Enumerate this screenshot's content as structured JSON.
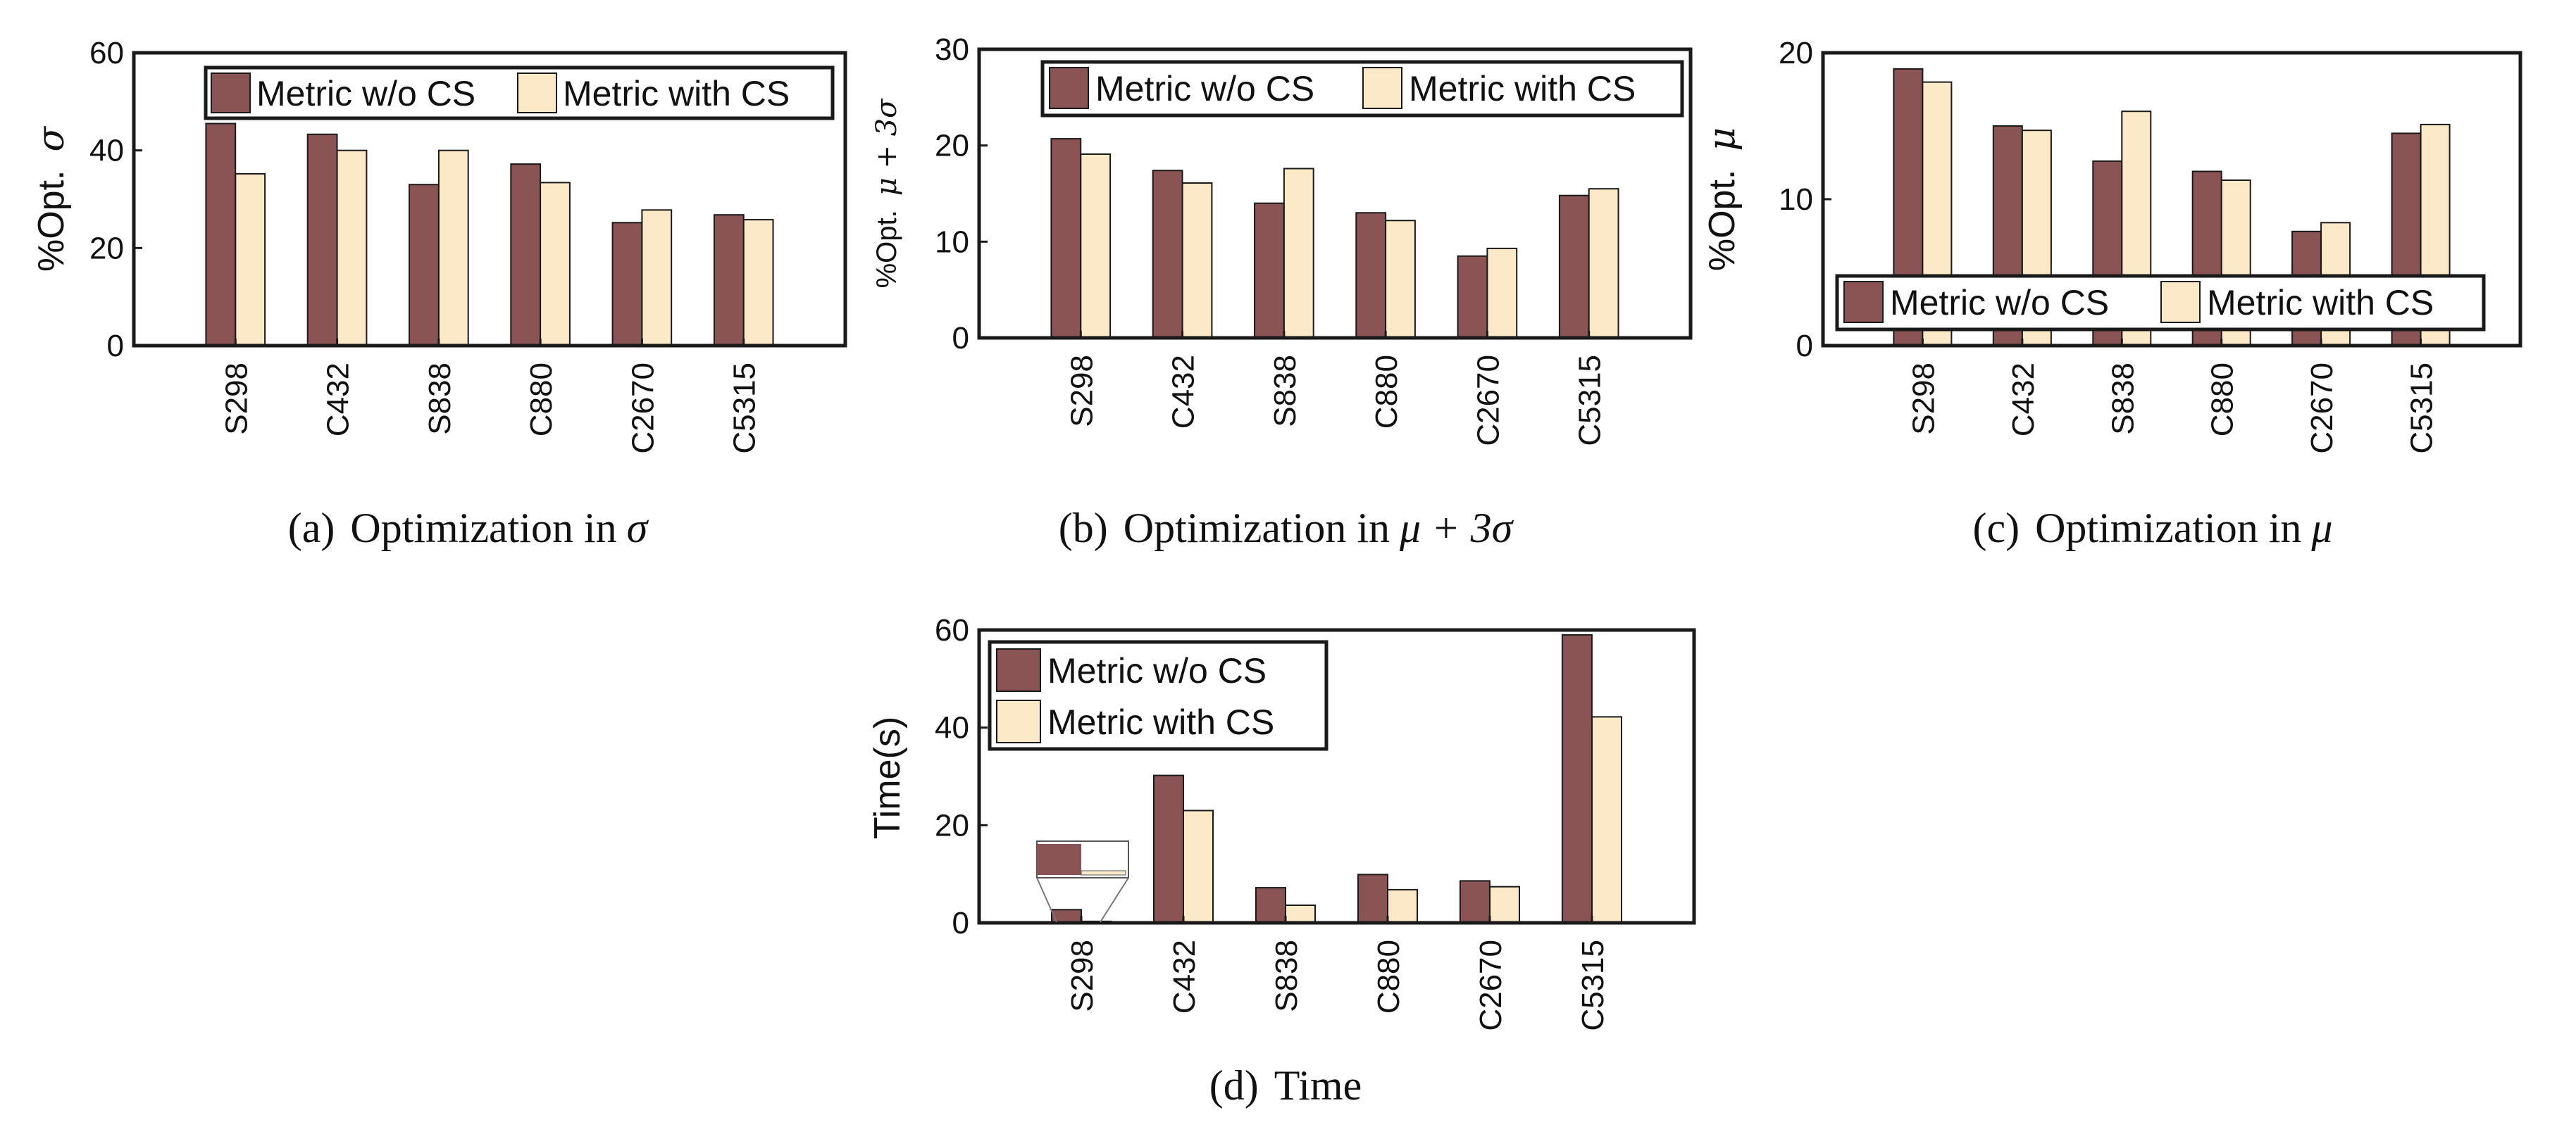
{
  "series_names": [
    "Metric w/o CS",
    "Metric with CS"
  ],
  "colors": {
    "without_cs": "#8a5455",
    "with_cs": "#fbe9c8",
    "axis": "#1a1a1a",
    "edge": "#1a1a1a",
    "background": "#ffffff"
  },
  "chart_data": [
    {
      "id": "a",
      "type": "bar",
      "title": "",
      "categories": [
        "S298",
        "C432",
        "S838",
        "C880",
        "C2670",
        "C5315"
      ],
      "series": [
        {
          "name": "Metric w/o CS",
          "values": [
            45.5,
            43.3,
            33.0,
            37.2,
            25.2,
            26.8
          ]
        },
        {
          "name": "Metric with CS",
          "values": [
            35.2,
            40.0,
            40.0,
            33.4,
            27.8,
            25.8
          ]
        }
      ],
      "ylim": [
        0,
        60
      ],
      "yticks": [
        "0",
        "20",
        "40",
        "60"
      ],
      "ylabel_prefix": "%Opt.",
      "ylabel_symbol": "σ",
      "xlabel": "",
      "legend_location": "top",
      "caption": {
        "tag": "(a)",
        "text": "Optimization in",
        "math": "σ"
      }
    },
    {
      "id": "b",
      "type": "bar",
      "title": "",
      "categories": [
        "S298",
        "C432",
        "S838",
        "C880",
        "C2670",
        "C5315"
      ],
      "series": [
        {
          "name": "Metric w/o CS",
          "values": [
            20.7,
            17.4,
            14.0,
            13.0,
            8.5,
            14.8
          ]
        },
        {
          "name": "Metric with CS",
          "values": [
            19.1,
            16.1,
            17.6,
            12.2,
            9.3,
            15.5
          ]
        }
      ],
      "ylim": [
        0,
        30
      ],
      "yticks": [
        "0",
        "10",
        "20",
        "30"
      ],
      "ylabel_prefix": "%Opt.",
      "ylabel_symbol": "μ + 3σ",
      "xlabel": "",
      "legend_location": "top",
      "caption": {
        "tag": "(b)",
        "text": "Optimization in",
        "math": "μ + 3σ"
      }
    },
    {
      "id": "c",
      "type": "bar",
      "title": "",
      "categories": [
        "S298",
        "C432",
        "S838",
        "C880",
        "C2670",
        "C5315"
      ],
      "series": [
        {
          "name": "Metric w/o CS",
          "values": [
            18.9,
            15.0,
            12.6,
            11.9,
            7.8,
            14.5
          ]
        },
        {
          "name": "Metric with CS",
          "values": [
            18.0,
            14.7,
            16.0,
            11.3,
            8.4,
            15.1
          ]
        }
      ],
      "ylim": [
        0,
        20
      ],
      "yticks": [
        "0",
        "10",
        "20"
      ],
      "ylabel_prefix": "%Opt.",
      "ylabel_symbol": "μ",
      "xlabel": "",
      "legend_location": "bottom",
      "caption": {
        "tag": "(c)",
        "text": "Optimization in",
        "math": "μ"
      }
    },
    {
      "id": "d",
      "type": "bar",
      "title": "",
      "categories": [
        "S298",
        "C432",
        "S838",
        "C880",
        "C2670",
        "C5315"
      ],
      "series": [
        {
          "name": "Metric w/o CS",
          "values": [
            2.7,
            30.2,
            7.2,
            9.9,
            8.6,
            59.0
          ]
        },
        {
          "name": "Metric with CS",
          "values": [
            0.3,
            23.0,
            3.6,
            6.8,
            7.4,
            42.2
          ]
        }
      ],
      "ylim": [
        0,
        60
      ],
      "yticks": [
        "0",
        "20",
        "40",
        "60"
      ],
      "ylabel_prefix": "Time(s)",
      "ylabel_symbol": "",
      "xlabel": "",
      "legend_location": "top-left",
      "caption": {
        "tag": "(d)",
        "text": "Time",
        "math": ""
      }
    }
  ]
}
